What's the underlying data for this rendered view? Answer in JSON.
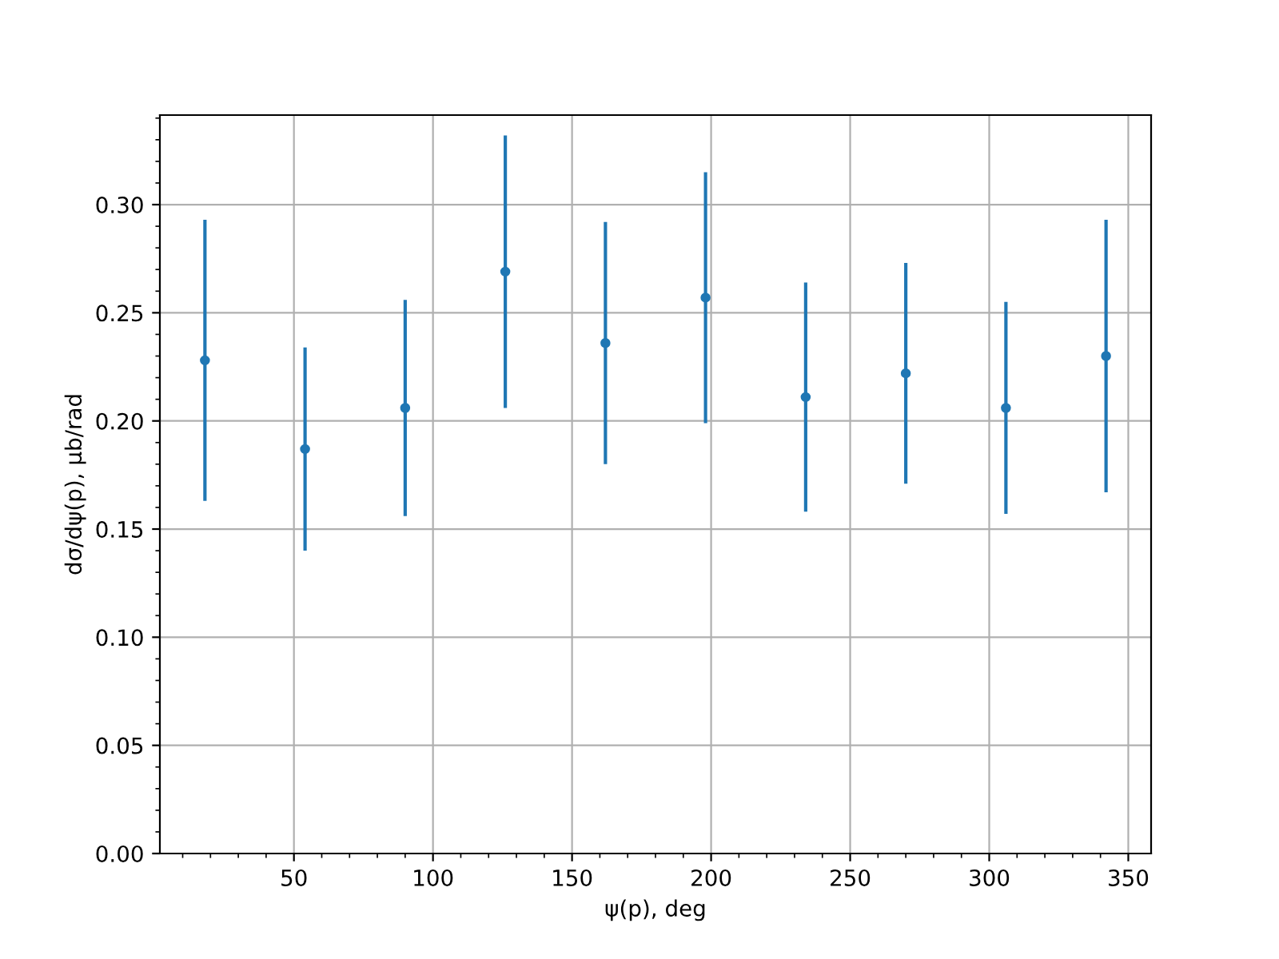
{
  "chart_data": {
    "type": "scatter",
    "xlabel": "ψ(p), deg",
    "ylabel": "dσ/dψ(p), μb/rad",
    "x": [
      18,
      54,
      90,
      126,
      162,
      198,
      234,
      270,
      306,
      342
    ],
    "series": [
      {
        "color": "#1f77b4",
        "values": [
          0.228,
          0.187,
          0.206,
          0.269,
          0.236,
          0.257,
          0.211,
          0.222,
          0.206,
          0.23
        ],
        "errors": [
          0.065,
          0.047,
          0.05,
          0.063,
          0.056,
          0.058,
          0.053,
          0.051,
          0.049,
          0.063
        ]
      }
    ],
    "marker": "circle",
    "xlim": [
      1.8,
      358.2
    ],
    "xticks": [
      50,
      100,
      150,
      200,
      250,
      300,
      350
    ],
    "ylim": [
      0,
      0.3414
    ],
    "yticks": [
      {
        "value": 0,
        "label": "0.00"
      },
      {
        "value": 0.05,
        "label": "0.05"
      },
      {
        "value": 0.1,
        "label": "0.10"
      },
      {
        "value": 0.15,
        "label": "0.15"
      },
      {
        "value": 0.2,
        "label": "0.20"
      },
      {
        "value": 0.25,
        "label": "0.25"
      },
      {
        "value": 0.3,
        "label": "0.30"
      }
    ],
    "grid": true
  }
}
